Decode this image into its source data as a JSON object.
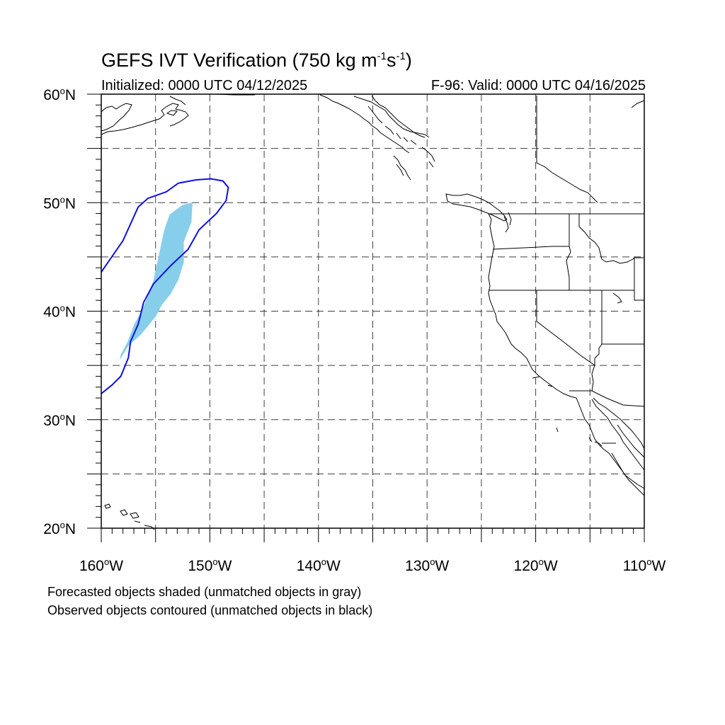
{
  "title": {
    "main": "GEFS IVT Verification (750 kg m",
    "exp1": "-1",
    "mid": "s",
    "exp2": "-1",
    "close": ")"
  },
  "initialized": "Initialized: 0000 UTC 04/12/2025",
  "valid": "F-96: Valid: 0000 UTC 04/16/2025",
  "footnotes": [
    "Forecasted objects shaded (unmatched objects in gray)",
    "Observed objects contoured (unmatched objects in black)"
  ],
  "map": {
    "lon_range": [
      -160,
      -110
    ],
    "lat_range": [
      20,
      60
    ],
    "lat_labels": [
      "60",
      "50",
      "40",
      "30",
      "20"
    ],
    "lat_suffix": "N",
    "lon_labels": [
      "160",
      "150",
      "140",
      "130",
      "120",
      "110"
    ],
    "lon_suffix": "W",
    "degree_symbol": "o",
    "grid_spacing_deg": 5,
    "colors": {
      "forecast_fill": "#87ceeb",
      "observed_contour": "#1010dd",
      "coastline": "#000000",
      "grid": "#000000"
    },
    "forecast_object": [
      [
        -158.2,
        36.0
      ],
      [
        -157.6,
        37.1
      ],
      [
        -157.0,
        38.7
      ],
      [
        -156.1,
        40.4
      ],
      [
        -155.2,
        42.8
      ],
      [
        -154.6,
        45.6
      ],
      [
        -154.2,
        47.5
      ],
      [
        -153.7,
        48.9
      ],
      [
        -152.5,
        49.8
      ],
      [
        -151.6,
        50.0
      ],
      [
        -151.7,
        48.2
      ],
      [
        -152.4,
        46.4
      ],
      [
        -152.4,
        44.5
      ],
      [
        -152.9,
        42.9
      ],
      [
        -153.6,
        41.6
      ],
      [
        -154.4,
        40.6
      ],
      [
        -155.0,
        39.5
      ],
      [
        -156.3,
        37.9
      ],
      [
        -157.5,
        36.8
      ],
      [
        -158.3,
        35.5
      ],
      [
        -158.2,
        36.0
      ]
    ],
    "observed_object": [
      [
        -160.0,
        32.4
      ],
      [
        -159.0,
        33.2
      ],
      [
        -158.2,
        34.0
      ],
      [
        -157.5,
        35.7
      ],
      [
        -157.3,
        37.2
      ],
      [
        -156.6,
        38.8
      ],
      [
        -156.1,
        40.8
      ],
      [
        -155.2,
        42.5
      ],
      [
        -153.6,
        44.2
      ],
      [
        -152.0,
        45.7
      ],
      [
        -151.0,
        47.5
      ],
      [
        -149.4,
        49.0
      ],
      [
        -148.5,
        50.2
      ],
      [
        -148.3,
        51.4
      ],
      [
        -148.8,
        52.0
      ],
      [
        -149.9,
        52.2
      ],
      [
        -151.3,
        52.1
      ],
      [
        -152.9,
        51.8
      ],
      [
        -154.0,
        51.0
      ],
      [
        -155.7,
        50.4
      ],
      [
        -156.6,
        49.6
      ],
      [
        -158.0,
        46.5
      ],
      [
        -160.0,
        43.6
      ]
    ]
  }
}
